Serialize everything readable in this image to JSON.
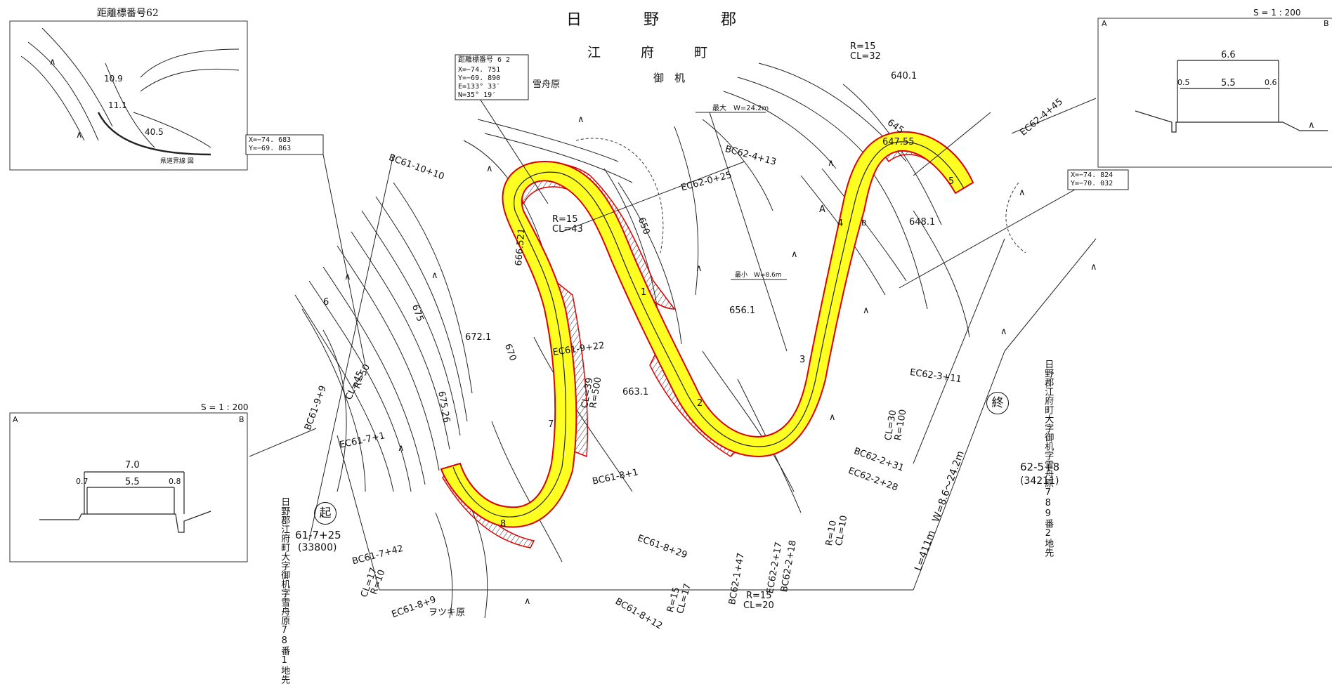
{
  "title": {
    "district": "日　　　　野　　　　郡",
    "town": "江　　　府　　　町",
    "area": "御　机",
    "hamlet": "雪舟原"
  },
  "inset_topleft": {
    "label": "距離標番号62",
    "r1": "10.9",
    "r2": "11.1",
    "r3": "40.5",
    "legend": "県道界線 図"
  },
  "station_62": {
    "head": "距離標番号 6 2",
    "x": "X=−74. 751",
    "y": "Y=−69. 890",
    "e": "E=133° 33′",
    "n": "N=35° 19′"
  },
  "coord_left": {
    "x": "X=−74. 683",
    "y": "Y=−69. 863"
  },
  "coord_right": {
    "x": "X=−74. 824",
    "y": "Y=−70. 032"
  },
  "section_left": {
    "scale": "S = 1 : 200",
    "a": "A",
    "b": "B",
    "w_total": "7.0",
    "w_road": "5.5",
    "sh_l": "0.7",
    "sh_r": "0.8"
  },
  "section_right": {
    "scale": "S = 1 : 200",
    "a": "A",
    "b": "B",
    "w_total": "6.6",
    "w_road": "5.5",
    "sh_l": "0.5",
    "sh_r": "0.6"
  },
  "start": {
    "mark": "起",
    "station": "61-7+25",
    "number": "(33800)",
    "address": "日野郡江府町大字御机字雪舟原78番1地先"
  },
  "end": {
    "mark": "終",
    "station": "62-5+8",
    "number": "(34211)",
    "address": "日野郡江府町大字御机字雪舟原789番2地先"
  },
  "max_width": "最大　W=24.2m",
  "min_width": "最小　W=8.6m",
  "length_note": "L=411m　W=8.6〜24.2m",
  "curves": [
    {
      "id": "r15-cl43",
      "r": "R=15",
      "cl": "CL=43"
    },
    {
      "id": "r15-cl32",
      "r": "R=15",
      "cl": "CL=32"
    },
    {
      "id": "r50-cl45",
      "r": "R=50",
      "cl": "CL=45"
    },
    {
      "id": "r500-cl39",
      "r": "R=500",
      "cl": "CL=39"
    },
    {
      "id": "r100-cl30",
      "r": "R=100",
      "cl": "CL=30"
    },
    {
      "id": "r10-cl10",
      "r": "R=10",
      "cl": "CL=10"
    },
    {
      "id": "r10-cl17",
      "r": "R=10",
      "cl": "CL=17"
    },
    {
      "id": "r15-cl17",
      "r": "R=15",
      "cl": "CL=17"
    },
    {
      "id": "r15-cl20",
      "r": "R=15",
      "cl": "CL=20"
    }
  ],
  "stations": [
    "BC61-10+10",
    "EC62-0+25",
    "BC62-4+13",
    "EC62-4+45",
    "EC61-9+22",
    "EC62-3+11",
    "BC61-9+9",
    "EC61-7+1",
    "BC61-8+1",
    "BC62-2+31",
    "EC62-2+28",
    "EC61-8+29",
    "BC61-7+42",
    "EC61-8+9",
    "BC61-8+12",
    "BC62-1+47",
    "EC62-2+17",
    "BC62-2+18"
  ],
  "elevations": [
    "640.1",
    "647.55",
    "648.1",
    "666.521",
    "672.1",
    "675.26",
    "656.1",
    "663.1"
  ],
  "contours": [
    "645",
    "650",
    "670",
    "675"
  ],
  "point_marks": [
    "A",
    "B"
  ],
  "sta_numbers": [
    "1",
    "2",
    "3",
    "4",
    "5",
    "6",
    "7",
    "8"
  ],
  "place_bottom": "ヲツキ原",
  "symbol_wasteland": "∧"
}
